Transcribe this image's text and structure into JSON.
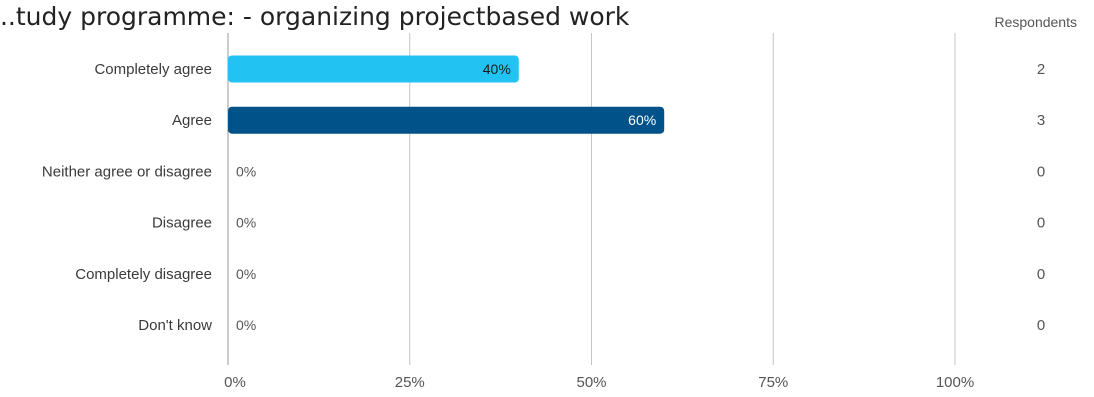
{
  "chart_data": {
    "type": "bar",
    "orientation": "horizontal",
    "title": "...tudy programme: - organizing projectbased work",
    "categories": [
      "Completely agree",
      "Agree",
      "Neither agree or disagree",
      "Disagree",
      "Completely disagree",
      "Don't know"
    ],
    "values": [
      40,
      60,
      0,
      0,
      0,
      0
    ],
    "value_labels": [
      "40%",
      "60%",
      "0%",
      "0%",
      "0%",
      "0%"
    ],
    "bar_colors": [
      "#22c3f2",
      "#005288",
      "#22c3f2",
      "#22c3f2",
      "#22c3f2",
      "#22c3f2"
    ],
    "bar_label_colors": [
      "#1a1a1a",
      "#ffffff",
      "#555555",
      "#555555",
      "#555555",
      "#555555"
    ],
    "xlim": [
      0,
      100
    ],
    "xticks": [
      0,
      25,
      50,
      75,
      100
    ],
    "xtick_labels": [
      "0%",
      "25%",
      "50%",
      "75%",
      "100%"
    ],
    "grid": true,
    "respondents_header": "Respondents",
    "respondents": [
      "2",
      "3",
      "0",
      "0",
      "0",
      "0"
    ]
  }
}
